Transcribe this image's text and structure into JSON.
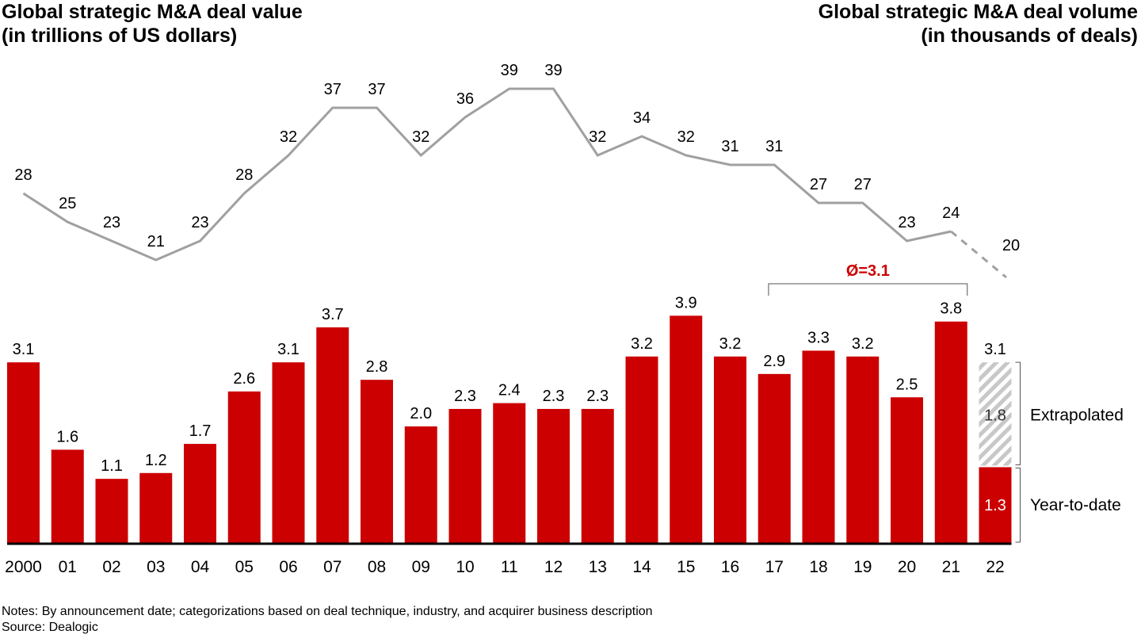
{
  "titles": {
    "left_line1": "Global strategic M&A deal value",
    "left_line2": "(in trillions of US dollars)",
    "right_line1": "Global strategic M&A deal volume",
    "right_line2": "(in thousands of deals)"
  },
  "footer": {
    "notes": "Notes: By announcement date; categorizations based on deal technique, industry, and acquirer business description",
    "source": "Source: Dealogic"
  },
  "colors": {
    "bar": "#cc0000",
    "line": "#a0a0a0",
    "average_label": "#cc0000",
    "extrapolated_hatch": "#c8c8c8"
  },
  "chart_data": [
    {
      "type": "bar",
      "title": "Global strategic M&A deal value (in trillions of US dollars)",
      "categories": [
        "2000",
        "01",
        "02",
        "03",
        "04",
        "05",
        "06",
        "07",
        "08",
        "09",
        "10",
        "11",
        "12",
        "13",
        "14",
        "15",
        "16",
        "17",
        "18",
        "19",
        "20",
        "21",
        "22"
      ],
      "series": [
        {
          "name": "Deal value",
          "values": [
            3.1,
            1.6,
            1.1,
            1.2,
            1.7,
            2.6,
            3.1,
            3.7,
            2.8,
            2.0,
            2.3,
            2.4,
            2.3,
            2.3,
            3.2,
            3.9,
            3.2,
            2.9,
            3.3,
            3.2,
            2.5,
            3.8,
            null
          ]
        }
      ],
      "stacked_last": {
        "category": "22",
        "total": 3.1,
        "segments": [
          {
            "name": "Year-to-date",
            "value": 1.3
          },
          {
            "name": "Extrapolated",
            "value": 1.8
          }
        ]
      },
      "annotation": {
        "label": "Ø=3.1",
        "span": [
          "17",
          "21"
        ]
      },
      "xlabel": "",
      "ylabel": "",
      "ylim": [
        0,
        4
      ],
      "grid": false
    },
    {
      "type": "line",
      "title": "Global strategic M&A deal volume (in thousands of deals)",
      "categories": [
        "2000",
        "01",
        "02",
        "03",
        "04",
        "05",
        "06",
        "07",
        "08",
        "09",
        "10",
        "11",
        "12",
        "13",
        "14",
        "15",
        "16",
        "17",
        "18",
        "19",
        "20",
        "21",
        "22"
      ],
      "series": [
        {
          "name": "Deal volume",
          "values": [
            28,
            25,
            23,
            21,
            23,
            28,
            32,
            37,
            37,
            32,
            36,
            39,
            39,
            32,
            34,
            32,
            31,
            31,
            27,
            27,
            23,
            24,
            20
          ]
        }
      ],
      "dashed_from": "21",
      "grid": false
    }
  ]
}
